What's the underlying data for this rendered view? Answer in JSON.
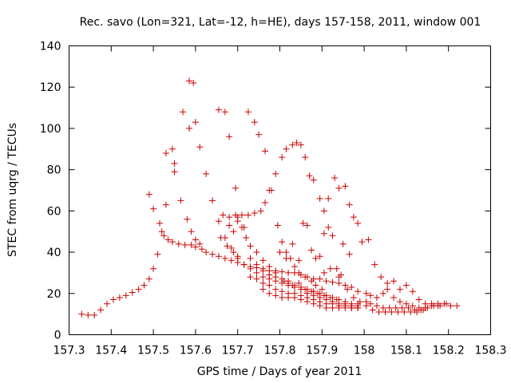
{
  "chart_data": {
    "type": "scatter",
    "title": "Rec. savo (Lon=321, Lat=-12, h=HE), days 157-158, 2011, window 001",
    "xlabel": "GPS time / Days of year 2011",
    "ylabel": "STEC from uqrg / TECUs",
    "xlim": [
      157.3,
      158.3
    ],
    "ylim": [
      0,
      140
    ],
    "xticks": [
      "157.3",
      "157.4",
      "157.5",
      "157.6",
      "157.7",
      "157.8",
      "157.9",
      "158",
      "158.1",
      "158.2",
      "158.3"
    ],
    "yticks": [
      "0",
      "20",
      "40",
      "60",
      "80",
      "100",
      "120",
      "140"
    ],
    "marker": "+",
    "color": "#cc0000",
    "grid": false,
    "points": [
      [
        157.33,
        10
      ],
      [
        157.345,
        9.5
      ],
      [
        157.36,
        9.5
      ],
      [
        157.375,
        12
      ],
      [
        157.39,
        15
      ],
      [
        157.405,
        17
      ],
      [
        157.42,
        18
      ],
      [
        157.435,
        19
      ],
      [
        157.45,
        20.5
      ],
      [
        157.465,
        22
      ],
      [
        157.478,
        24
      ],
      [
        157.49,
        27
      ],
      [
        157.5,
        32
      ],
      [
        157.51,
        39
      ],
      [
        157.52,
        50
      ],
      [
        157.525,
        48
      ],
      [
        157.535,
        46
      ],
      [
        157.545,
        45
      ],
      [
        157.56,
        44
      ],
      [
        157.575,
        43.5
      ],
      [
        157.59,
        43.5
      ],
      [
        157.6,
        42.5
      ],
      [
        157.615,
        41.5
      ],
      [
        157.625,
        40
      ],
      [
        157.64,
        39
      ],
      [
        157.655,
        38
      ],
      [
        157.67,
        37
      ],
      [
        157.685,
        36
      ],
      [
        157.7,
        35
      ],
      [
        157.715,
        34
      ],
      [
        157.73,
        33
      ],
      [
        157.745,
        32.5
      ],
      [
        157.76,
        32
      ],
      [
        157.775,
        31
      ],
      [
        157.79,
        31
      ],
      [
        157.805,
        30.5
      ],
      [
        157.82,
        30
      ],
      [
        157.835,
        30
      ],
      [
        157.85,
        29
      ],
      [
        157.865,
        28
      ],
      [
        157.88,
        27
      ],
      [
        157.895,
        27
      ],
      [
        157.91,
        26
      ],
      [
        157.925,
        25.5
      ],
      [
        157.94,
        25
      ],
      [
        157.955,
        24
      ],
      [
        157.97,
        23
      ],
      [
        157.985,
        21
      ],
      [
        157.49,
        68
      ],
      [
        157.5,
        61
      ],
      [
        157.515,
        54
      ],
      [
        157.53,
        63
      ],
      [
        157.55,
        79
      ],
      [
        157.55,
        83
      ],
      [
        157.565,
        65
      ],
      [
        157.58,
        56
      ],
      [
        157.59,
        50
      ],
      [
        157.6,
        46
      ],
      [
        157.61,
        44
      ],
      [
        157.53,
        88
      ],
      [
        157.545,
        90
      ],
      [
        157.57,
        108
      ],
      [
        157.585,
        100
      ],
      [
        157.585,
        123
      ],
      [
        157.6,
        103
      ],
      [
        157.595,
        122
      ],
      [
        157.61,
        91
      ],
      [
        157.625,
        78
      ],
      [
        157.64,
        65
      ],
      [
        157.655,
        55
      ],
      [
        157.67,
        47
      ],
      [
        157.685,
        42
      ],
      [
        157.7,
        38
      ],
      [
        157.655,
        109
      ],
      [
        157.67,
        108
      ],
      [
        157.68,
        96
      ],
      [
        157.695,
        71
      ],
      [
        157.7,
        57
      ],
      [
        157.715,
        52
      ],
      [
        157.725,
        108
      ],
      [
        157.74,
        103
      ],
      [
        157.75,
        97
      ],
      [
        157.765,
        89
      ],
      [
        157.78,
        70
      ],
      [
        157.795,
        53
      ],
      [
        157.805,
        45
      ],
      [
        157.815,
        40
      ],
      [
        157.825,
        37
      ],
      [
        157.835,
        33
      ],
      [
        157.845,
        30
      ],
      [
        157.86,
        28
      ],
      [
        157.875,
        26
      ],
      [
        157.885,
        24
      ],
      [
        157.9,
        22
      ],
      [
        157.665,
        58
      ],
      [
        157.68,
        57
      ],
      [
        157.695,
        58
      ],
      [
        157.71,
        58
      ],
      [
        157.725,
        58
      ],
      [
        157.74,
        59
      ],
      [
        157.755,
        60
      ],
      [
        157.765,
        64
      ],
      [
        157.775,
        70
      ],
      [
        157.79,
        78
      ],
      [
        157.805,
        86
      ],
      [
        157.815,
        90
      ],
      [
        157.83,
        92
      ],
      [
        157.84,
        93
      ],
      [
        157.85,
        92
      ],
      [
        157.86,
        86
      ],
      [
        157.87,
        77
      ],
      [
        157.88,
        75
      ],
      [
        157.895,
        66
      ],
      [
        157.905,
        60
      ],
      [
        157.915,
        66
      ],
      [
        157.93,
        76
      ],
      [
        157.94,
        71
      ],
      [
        157.955,
        72
      ],
      [
        157.965,
        63
      ],
      [
        157.975,
        57
      ],
      [
        157.985,
        54
      ],
      [
        157.995,
        45
      ],
      [
        157.68,
        53
      ],
      [
        157.69,
        50
      ],
      [
        157.7,
        55
      ],
      [
        157.71,
        52
      ],
      [
        157.72,
        47
      ],
      [
        157.73,
        43
      ],
      [
        157.745,
        40
      ],
      [
        157.76,
        36
      ],
      [
        157.775,
        33
      ],
      [
        157.79,
        30
      ],
      [
        157.81,
        26
      ],
      [
        157.82,
        25
      ],
      [
        157.83,
        24
      ],
      [
        157.845,
        25
      ],
      [
        157.86,
        22
      ],
      [
        157.875,
        21
      ],
      [
        157.89,
        20
      ],
      [
        157.905,
        19
      ],
      [
        157.92,
        18
      ],
      [
        157.935,
        17
      ],
      [
        157.66,
        47
      ],
      [
        157.675,
        43
      ],
      [
        157.69,
        40
      ],
      [
        157.7,
        37
      ],
      [
        157.715,
        34
      ],
      [
        157.73,
        32
      ],
      [
        157.745,
        30
      ],
      [
        157.76,
        28
      ],
      [
        157.775,
        27
      ],
      [
        157.79,
        26
      ],
      [
        157.805,
        25
      ],
      [
        157.82,
        24
      ],
      [
        157.835,
        23
      ],
      [
        157.85,
        22
      ],
      [
        157.865,
        20
      ],
      [
        157.88,
        19
      ],
      [
        157.895,
        18
      ],
      [
        157.91,
        17
      ],
      [
        157.925,
        16
      ],
      [
        157.94,
        15
      ],
      [
        157.955,
        15
      ],
      [
        157.97,
        14
      ],
      [
        157.985,
        14
      ],
      [
        157.73,
        37
      ],
      [
        157.745,
        34
      ],
      [
        157.76,
        31
      ],
      [
        157.775,
        29
      ],
      [
        157.79,
        28
      ],
      [
        157.805,
        27
      ],
      [
        157.82,
        26
      ],
      [
        157.835,
        24
      ],
      [
        157.85,
        23
      ],
      [
        157.865,
        22
      ],
      [
        157.88,
        21
      ],
      [
        157.895,
        20
      ],
      [
        157.91,
        19
      ],
      [
        157.925,
        18
      ],
      [
        157.94,
        17
      ],
      [
        157.955,
        16
      ],
      [
        157.97,
        15
      ],
      [
        157.985,
        15
      ],
      [
        157.73,
        28
      ],
      [
        157.745,
        27
      ],
      [
        157.76,
        25
      ],
      [
        157.775,
        24
      ],
      [
        157.79,
        22
      ],
      [
        157.805,
        21
      ],
      [
        157.82,
        20
      ],
      [
        157.835,
        20
      ],
      [
        157.85,
        19
      ],
      [
        157.865,
        18
      ],
      [
        157.88,
        17
      ],
      [
        157.895,
        16
      ],
      [
        157.91,
        15
      ],
      [
        157.925,
        15
      ],
      [
        157.94,
        14
      ],
      [
        157.955,
        14
      ],
      [
        157.97,
        13
      ],
      [
        157.985,
        13
      ],
      [
        157.76,
        22
      ],
      [
        157.775,
        20
      ],
      [
        157.79,
        19
      ],
      [
        157.805,
        18
      ],
      [
        157.82,
        18
      ],
      [
        157.835,
        18
      ],
      [
        157.85,
        17
      ],
      [
        157.865,
        16
      ],
      [
        157.88,
        15
      ],
      [
        157.895,
        14
      ],
      [
        157.91,
        13
      ],
      [
        157.925,
        13
      ],
      [
        157.94,
        13
      ],
      [
        157.955,
        13
      ],
      [
        157.97,
        13
      ],
      [
        157.985,
        13
      ],
      [
        157.8,
        40
      ],
      [
        157.815,
        37
      ],
      [
        157.83,
        44
      ],
      [
        157.845,
        36
      ],
      [
        157.855,
        54
      ],
      [
        157.865,
        53
      ],
      [
        157.875,
        41
      ],
      [
        157.885,
        37
      ],
      [
        157.895,
        38
      ],
      [
        157.905,
        49
      ],
      [
        157.915,
        52
      ],
      [
        157.925,
        48
      ],
      [
        157.935,
        32
      ],
      [
        157.945,
        29
      ],
      [
        157.95,
        44
      ],
      [
        157.965,
        39
      ],
      [
        157.905,
        30
      ],
      [
        157.92,
        32
      ],
      [
        157.94,
        28
      ],
      [
        157.96,
        22
      ],
      [
        157.975,
        18
      ],
      [
        157.99,
        16
      ],
      [
        158.01,
        46
      ],
      [
        158.025,
        34
      ],
      [
        158.04,
        28
      ],
      [
        158.055,
        25
      ],
      [
        158.07,
        26
      ],
      [
        158.085,
        22
      ],
      [
        158.1,
        24
      ],
      [
        158.115,
        21
      ],
      [
        158.13,
        17
      ],
      [
        158.145,
        15
      ],
      [
        158.16,
        15
      ],
      [
        158.175,
        15
      ],
      [
        158.19,
        15
      ],
      [
        158.205,
        14
      ],
      [
        158.22,
        14
      ],
      [
        158.005,
        20
      ],
      [
        158.015,
        19
      ],
      [
        158.03,
        18
      ],
      [
        158.045,
        20
      ],
      [
        158.055,
        22
      ],
      [
        158.07,
        18
      ],
      [
        158.085,
        16
      ],
      [
        158.1,
        15
      ],
      [
        158.115,
        14
      ],
      [
        158.13,
        13
      ],
      [
        158.145,
        13
      ],
      [
        158.16,
        14
      ],
      [
        158.175,
        14
      ],
      [
        158.005,
        16
      ],
      [
        158.015,
        15
      ],
      [
        158.03,
        14
      ],
      [
        158.045,
        13
      ],
      [
        158.06,
        13
      ],
      [
        158.075,
        13
      ],
      [
        158.09,
        13
      ],
      [
        158.105,
        13
      ],
      [
        158.12,
        12
      ],
      [
        158.135,
        12
      ],
      [
        158.15,
        13
      ],
      [
        158.165,
        14
      ],
      [
        158.18,
        14
      ],
      [
        158.195,
        15
      ],
      [
        158.005,
        14
      ],
      [
        158.02,
        12
      ],
      [
        158.035,
        11
      ],
      [
        158.05,
        11
      ],
      [
        158.065,
        11
      ],
      [
        158.08,
        11
      ],
      [
        158.095,
        11
      ],
      [
        158.11,
        11
      ],
      [
        158.125,
        11
      ],
      [
        158.14,
        12
      ]
    ]
  }
}
